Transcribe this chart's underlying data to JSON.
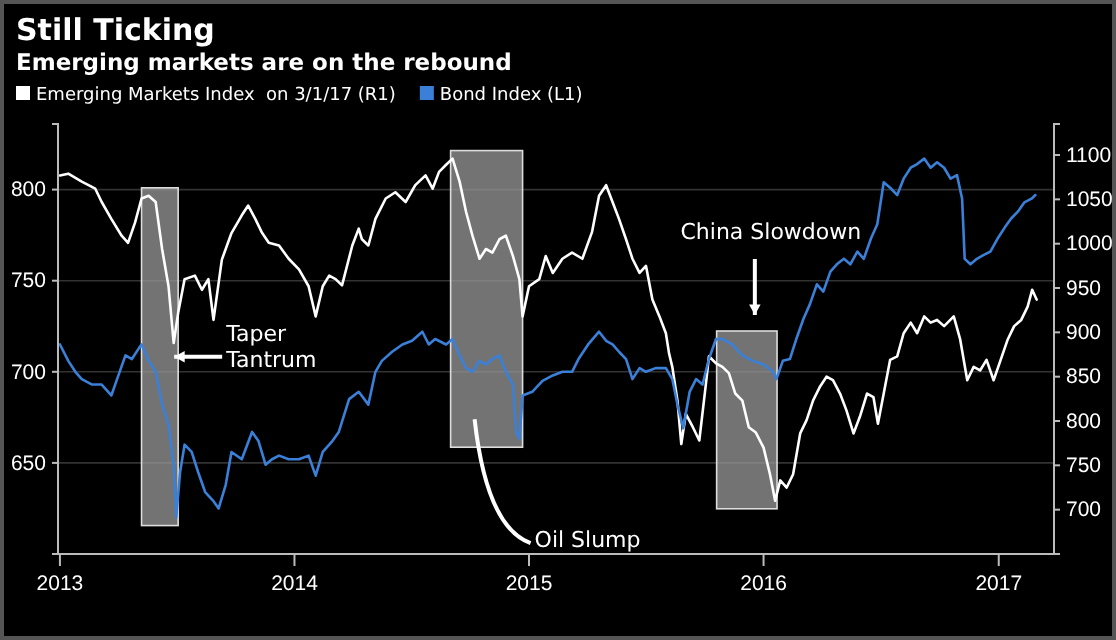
{
  "chart_data": {
    "type": "line",
    "title": "Still Ticking",
    "subtitle": "Emerging markets are on the rebound",
    "xlim": [
      "2012-12-29",
      "2017-03-28"
    ],
    "xticks": [
      {
        "value": "2013-01-01",
        "label": "2013"
      },
      {
        "value": "2014-01-01",
        "label": "2014"
      },
      {
        "value": "2015-01-01",
        "label": "2015"
      },
      {
        "value": "2016-01-01",
        "label": "2016"
      },
      {
        "value": "2017-01-01",
        "label": "2017"
      }
    ],
    "ylim": [
      600,
      836
    ],
    "yticks": [
      650,
      700,
      750,
      800
    ],
    "y2lim": [
      650,
      1135
    ],
    "y2ticks": [
      700,
      750,
      800,
      850,
      900,
      950,
      1000,
      1050,
      1100
    ],
    "grid": "y",
    "legend": "top left",
    "bands": [
      {
        "axis": "x",
        "from": "2013-05-08",
        "to": "2013-07-04",
        "label": "Taper\nTantrum",
        "color": "#9a9a9a"
      },
      {
        "axis": "x",
        "from": "2014-09-01",
        "to": "2014-12-22",
        "label": "Oil Slump",
        "color": "#9a9a9a"
      },
      {
        "axis": "x",
        "from": "2015-10-20",
        "to": "2016-01-22",
        "label": "China Slowdown",
        "color": "#9a9a9a"
      }
    ],
    "series": [
      {
        "name": "Emerging Markets Index  on 3/1/17 (R1)",
        "color": "#ffffff",
        "axis": "y2",
        "x": [
          "2013-01-01",
          "2013-01-14",
          "2013-02-04",
          "2013-02-25",
          "2013-03-07",
          "2013-03-22",
          "2013-04-07",
          "2013-04-17",
          "2013-04-28",
          "2013-05-08",
          "2013-05-19",
          "2013-05-30",
          "2013-06-09",
          "2013-06-19",
          "2013-06-27",
          "2013-07-04",
          "2013-07-14",
          "2013-07-30",
          "2013-08-10",
          "2013-08-20",
          "2013-08-28",
          "2013-09-10",
          "2013-09-25",
          "2013-10-11",
          "2013-10-21",
          "2013-11-01",
          "2013-11-11",
          "2013-11-22",
          "2013-12-08",
          "2013-12-23",
          "2014-01-08",
          "2014-01-23",
          "2014-02-03",
          "2014-02-14",
          "2014-02-24",
          "2014-03-06",
          "2014-03-16",
          "2014-04-01",
          "2014-04-11",
          "2014-04-16",
          "2014-04-26",
          "2014-05-07",
          "2014-05-23",
          "2014-06-07",
          "2014-06-23",
          "2014-07-08",
          "2014-07-24",
          "2014-08-04",
          "2014-08-14",
          "2014-08-25",
          "2014-09-04",
          "2014-09-15",
          "2014-09-25",
          "2014-10-05",
          "2014-10-16",
          "2014-10-26",
          "2014-11-05",
          "2014-11-16",
          "2014-11-26",
          "2014-12-07",
          "2014-12-17",
          "2014-12-22",
          "2015-01-01",
          "2015-01-17",
          "2015-01-27",
          "2015-02-07",
          "2015-02-22",
          "2015-03-09",
          "2015-03-25",
          "2015-04-09",
          "2015-04-20",
          "2015-05-01",
          "2015-05-11",
          "2015-05-21",
          "2015-06-01",
          "2015-06-11",
          "2015-06-22",
          "2015-07-02",
          "2015-07-12",
          "2015-07-23",
          "2015-08-02",
          "2015-08-07",
          "2015-08-12",
          "2015-08-20",
          "2015-08-26",
          "2015-09-02",
          "2015-09-13",
          "2015-09-23",
          "2015-10-03",
          "2015-10-08",
          "2015-10-19",
          "2015-10-29",
          "2015-11-08",
          "2015-11-18",
          "2015-11-29",
          "2015-12-09",
          "2015-12-20",
          "2016-01-01",
          "2016-01-11",
          "2016-01-19",
          "2016-01-27",
          "2016-02-06",
          "2016-02-16",
          "2016-02-27",
          "2016-03-08",
          "2016-03-18",
          "2016-03-29",
          "2016-04-08",
          "2016-04-18",
          "2016-04-29",
          "2016-05-09",
          "2016-05-20",
          "2016-05-30",
          "2016-06-10",
          "2016-06-20",
          "2016-06-27",
          "2016-07-06",
          "2016-07-16",
          "2016-07-27",
          "2016-08-06",
          "2016-08-17",
          "2016-08-27",
          "2016-09-07",
          "2016-09-17",
          "2016-09-27",
          "2016-10-08",
          "2016-10-23",
          "2016-11-02",
          "2016-11-13",
          "2016-11-23",
          "2016-12-03",
          "2016-12-13",
          "2016-12-24",
          "2017-01-04",
          "2017-01-15",
          "2017-01-25",
          "2017-02-05",
          "2017-02-15",
          "2017-02-22",
          "2017-03-01"
        ],
        "values": [
          1077,
          1079,
          1070,
          1062,
          1047,
          1028,
          1009,
          1001,
          1024,
          1051,
          1054,
          1047,
          994,
          952,
          888,
          922,
          960,
          964,
          948,
          960,
          914,
          982,
          1012,
          1032,
          1043,
          1028,
          1013,
          1001,
          998,
          983,
          971,
          952,
          918,
          952,
          964,
          960,
          953,
          998,
          1017,
          1005,
          998,
          1028,
          1051,
          1058,
          1047,
          1066,
          1077,
          1062,
          1081,
          1089,
          1096,
          1070,
          1036,
          1009,
          983,
          994,
          990,
          1005,
          1009,
          986,
          960,
          918,
          952,
          960,
          986,
          967,
          983,
          990,
          983,
          1013,
          1054,
          1066,
          1047,
          1028,
          1005,
          983,
          967,
          975,
          937,
          918,
          899,
          876,
          861,
          823,
          774,
          808,
          793,
          778,
          840,
          873,
          865,
          861,
          854,
          831,
          823,
          793,
          787,
          770,
          740,
          710,
          733,
          725,
          740,
          786,
          801,
          823,
          839,
          850,
          846,
          831,
          812,
          786,
          805,
          831,
          827,
          797,
          831,
          869,
          873,
          899,
          911,
          899,
          918,
          911,
          914,
          907,
          918,
          892,
          846,
          861,
          857,
          869,
          846,
          869,
          892,
          907,
          914,
          929,
          948,
          937
        ]
      },
      {
        "name": "Bond Index (L1)",
        "color": "#3b80d8",
        "x": [
          "2013-01-01",
          "2013-01-14",
          "2013-01-25",
          "2013-02-04",
          "2013-02-20",
          "2013-03-07",
          "2013-03-22",
          "2013-04-02",
          "2013-04-13",
          "2013-04-23",
          "2013-05-04",
          "2013-05-08",
          "2013-05-19",
          "2013-05-30",
          "2013-06-09",
          "2013-06-19",
          "2013-06-27",
          "2013-07-01",
          "2013-07-07",
          "2013-07-14",
          "2013-07-25",
          "2013-08-04",
          "2013-08-15",
          "2013-08-28",
          "2013-09-05",
          "2013-09-16",
          "2013-09-25",
          "2013-10-11",
          "2013-10-27",
          "2013-11-06",
          "2013-11-17",
          "2013-11-27",
          "2013-12-08",
          "2013-12-23",
          "2014-01-08",
          "2014-01-23",
          "2014-02-03",
          "2014-02-14",
          "2014-03-01",
          "2014-03-11",
          "2014-03-27",
          "2014-04-11",
          "2014-04-26",
          "2014-05-07",
          "2014-05-17",
          "2014-06-02",
          "2014-06-18",
          "2014-07-03",
          "2014-07-19",
          "2014-07-29",
          "2014-08-08",
          "2014-08-25",
          "2014-09-04",
          "2014-09-15",
          "2014-09-25",
          "2014-10-05",
          "2014-10-16",
          "2014-10-26",
          "2014-11-05",
          "2014-11-16",
          "2014-11-26",
          "2014-12-07",
          "2014-12-12",
          "2014-12-17",
          "2014-12-22",
          "2015-01-06",
          "2015-01-22",
          "2015-02-07",
          "2015-02-22",
          "2015-03-09",
          "2015-03-19",
          "2015-04-03",
          "2015-04-20",
          "2015-05-01",
          "2015-05-11",
          "2015-05-21",
          "2015-06-01",
          "2015-06-11",
          "2015-06-22",
          "2015-07-02",
          "2015-07-17",
          "2015-08-02",
          "2015-08-12",
          "2015-08-20",
          "2015-08-29",
          "2015-09-08",
          "2015-09-18",
          "2015-09-28",
          "2015-10-08",
          "2015-10-19",
          "2015-10-29",
          "2015-11-13",
          "2015-11-29",
          "2015-12-15",
          "2016-01-01",
          "2016-01-16",
          "2016-01-21",
          "2016-01-31",
          "2016-02-11",
          "2016-02-21",
          "2016-03-03",
          "2016-03-13",
          "2016-03-24",
          "2016-04-03",
          "2016-04-14",
          "2016-04-24",
          "2016-05-05",
          "2016-05-15",
          "2016-05-26",
          "2016-06-05",
          "2016-06-16",
          "2016-06-26",
          "2016-07-06",
          "2016-07-16",
          "2016-07-27",
          "2016-08-06",
          "2016-08-17",
          "2016-08-27",
          "2016-09-07",
          "2016-09-17",
          "2016-09-27",
          "2016-10-08",
          "2016-10-18",
          "2016-10-28",
          "2016-11-05",
          "2016-11-09",
          "2016-11-18",
          "2016-11-28",
          "2016-12-08",
          "2016-12-19",
          "2016-12-30",
          "2017-01-10",
          "2017-01-20",
          "2017-01-31",
          "2017-02-10",
          "2017-02-21",
          "2017-02-27"
        ],
        "values": [
          715,
          706,
          700,
          696,
          693,
          693,
          687,
          698,
          709,
          707,
          713,
          715,
          706,
          700,
          682,
          671,
          649,
          620,
          645,
          660,
          656,
          645,
          634,
          629,
          625,
          638,
          656,
          652,
          667,
          662,
          649,
          652,
          654,
          652,
          652,
          654,
          643,
          656,
          662,
          667,
          685,
          689,
          682,
          700,
          706,
          711,
          715,
          717,
          722,
          715,
          718,
          715,
          718,
          709,
          702,
          700,
          706,
          704,
          707,
          709,
          700,
          693,
          667,
          663,
          687,
          689,
          695,
          698,
          700,
          700,
          707,
          715,
          722,
          717,
          715,
          711,
          707,
          696,
          702,
          700,
          702,
          702,
          696,
          682,
          669,
          689,
          696,
          693,
          707,
          718,
          718,
          715,
          709,
          706,
          704,
          700,
          696,
          706,
          707,
          718,
          729,
          737,
          748,
          744,
          755,
          759,
          762,
          759,
          766,
          762,
          773,
          781,
          804,
          801,
          797,
          806,
          812,
          814,
          817,
          812,
          815,
          812,
          806,
          808,
          795,
          762,
          759,
          762,
          764,
          766,
          773,
          779,
          784,
          788,
          793,
          795,
          797
        ]
      }
    ]
  }
}
